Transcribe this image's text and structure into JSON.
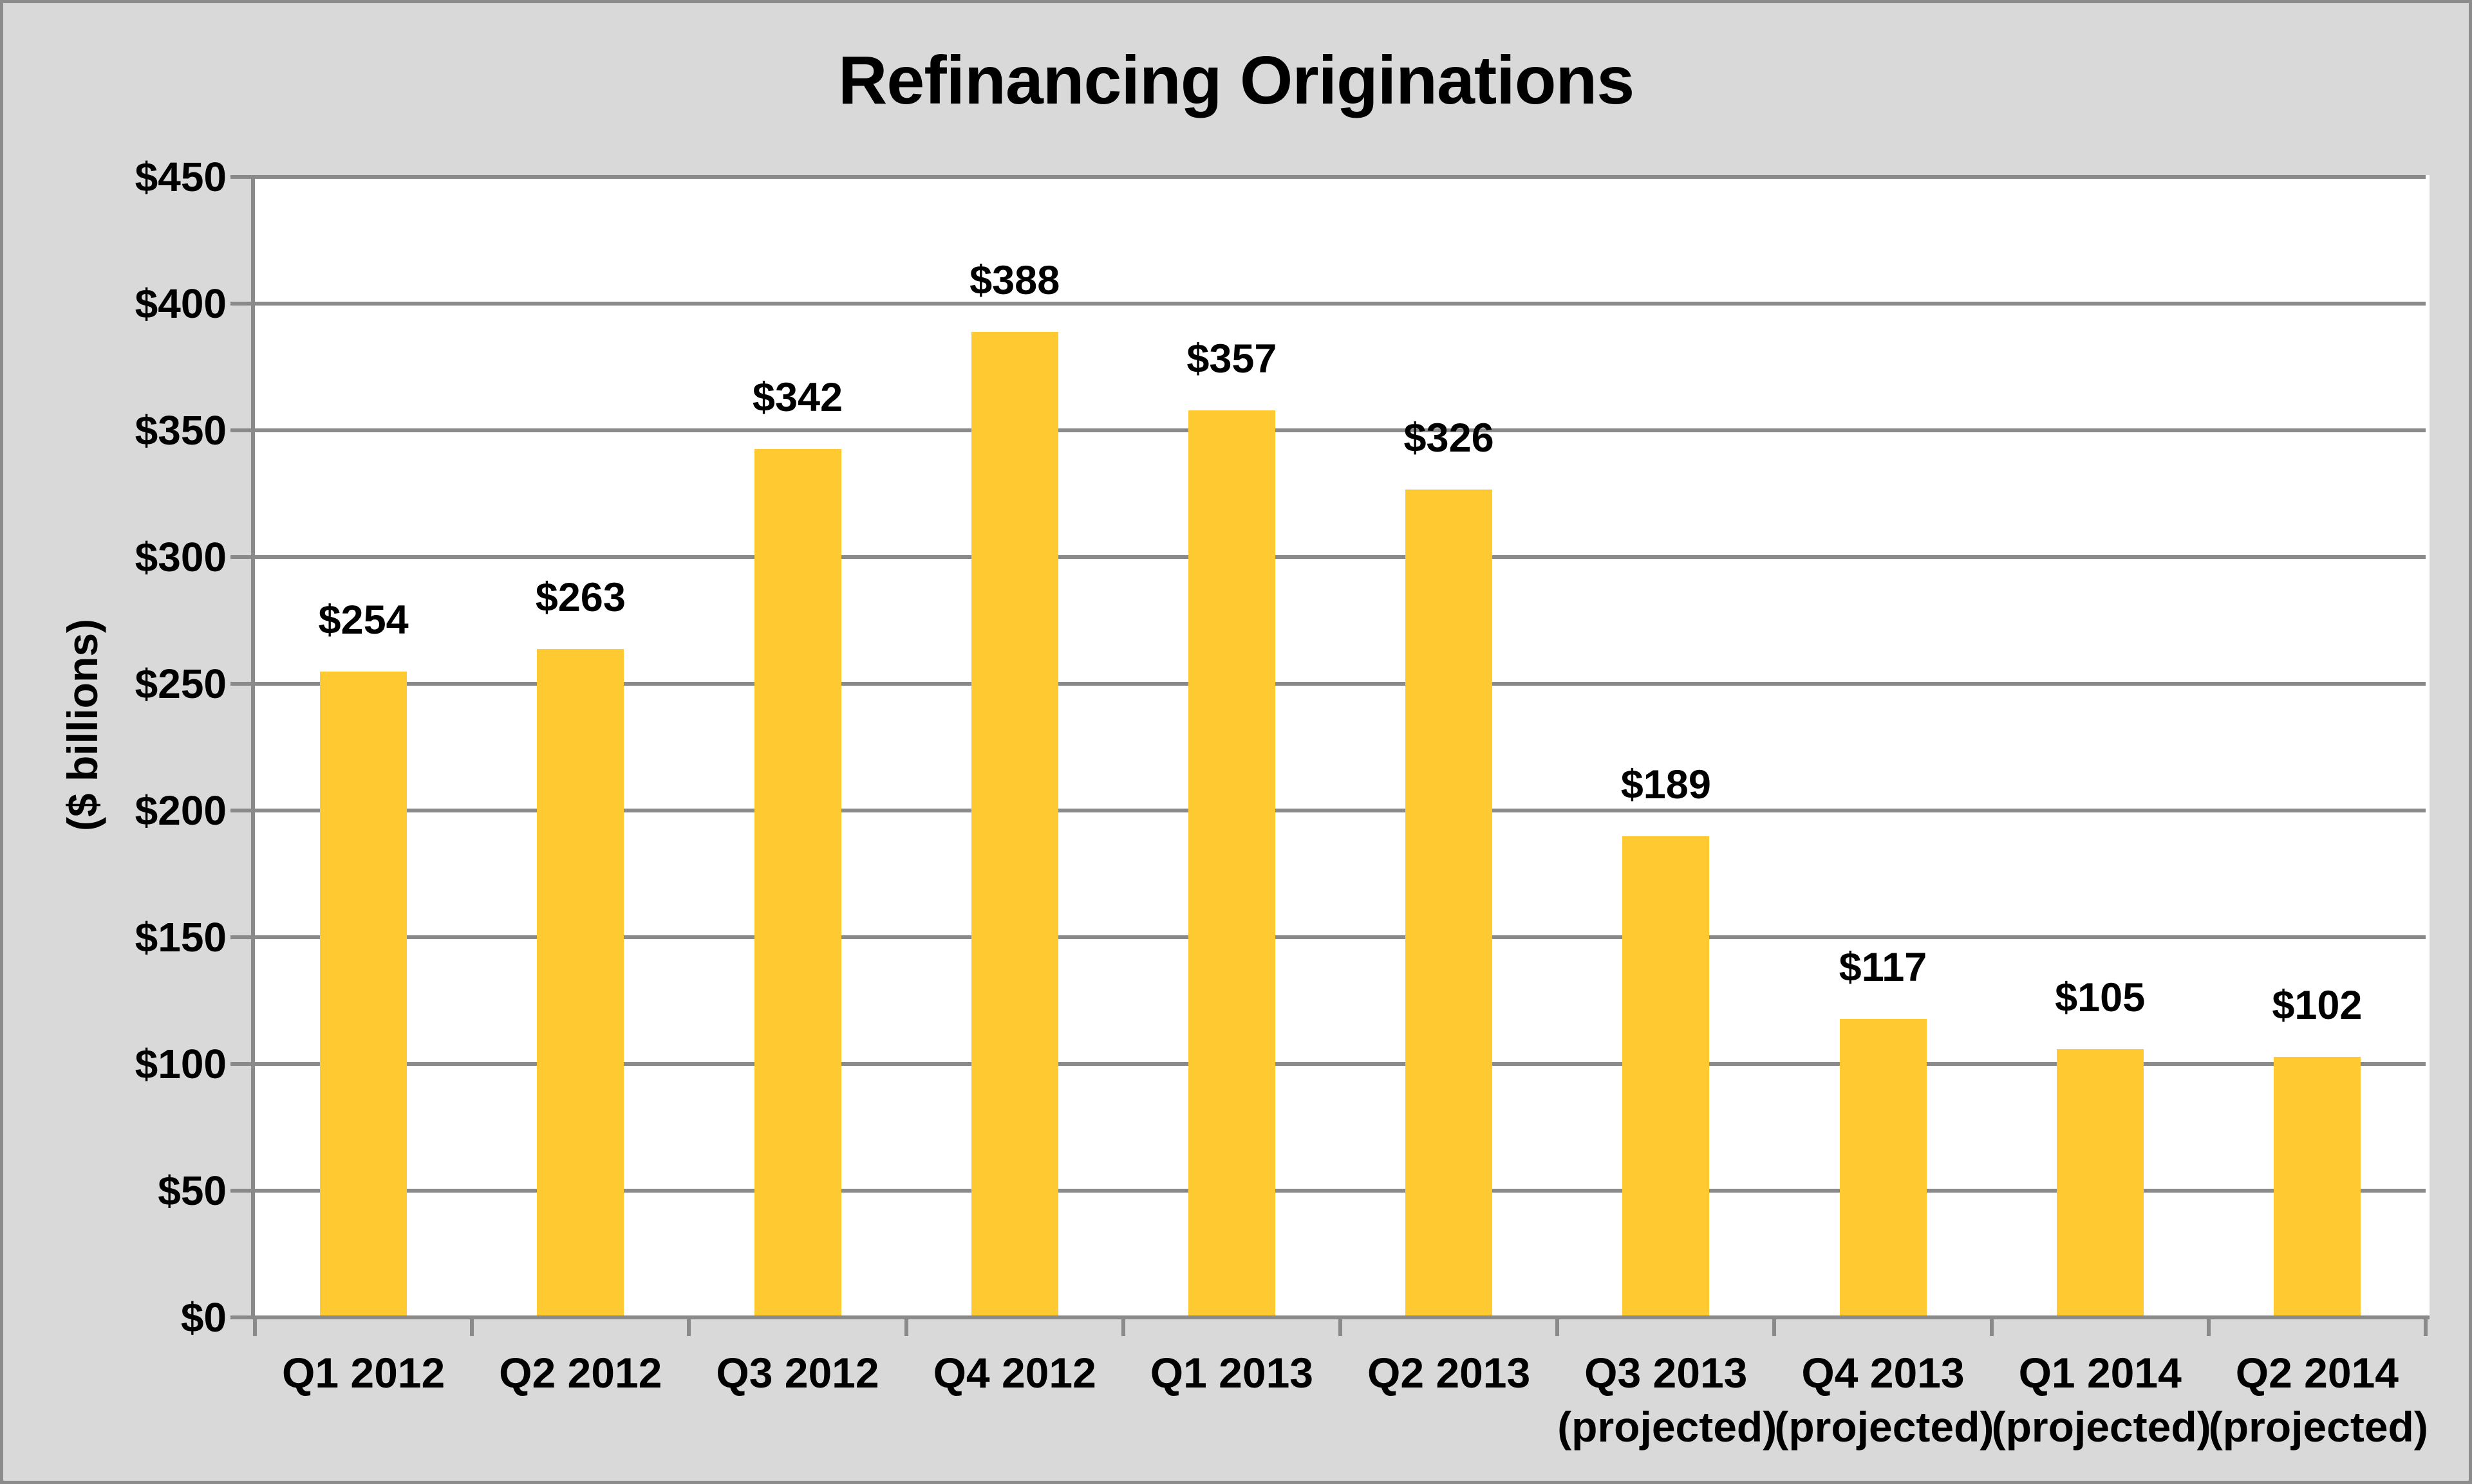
{
  "chart_data": {
    "type": "bar",
    "title": "Refinancing Originations",
    "xlabel": "",
    "ylabel": "($ billions)",
    "categories": [
      "Q1 2012",
      "Q2 2012",
      "Q3 2012",
      "Q4 2012",
      "Q1 2013",
      "Q2 2013",
      "Q3 2013 (projected)",
      "Q4 2013 (projected)",
      "Q1 2014 (projected)",
      "Q2 2014 (projected)"
    ],
    "values": [
      254,
      263,
      342,
      388,
      357,
      326,
      189,
      117,
      105,
      102
    ],
    "data_labels": [
      "$254",
      "$263",
      "$342",
      "$388",
      "$357",
      "$326",
      "$189",
      "$117",
      "$105",
      "$102"
    ],
    "ylim": [
      0,
      450
    ],
    "ytick_step": 50,
    "ytick_labels": [
      "$0",
      "$50",
      "$100",
      "$150",
      "$200",
      "$250",
      "$300",
      "$350",
      "$400",
      "$450"
    ],
    "grid": true,
    "legend": "none",
    "colors": {
      "bar": "#FFC932",
      "background": "#D9D9D9",
      "plot_background": "#FFFFFF",
      "gridline": "#8A8A8A",
      "text": "#000000",
      "frame_border": "#8C8C8C"
    }
  }
}
